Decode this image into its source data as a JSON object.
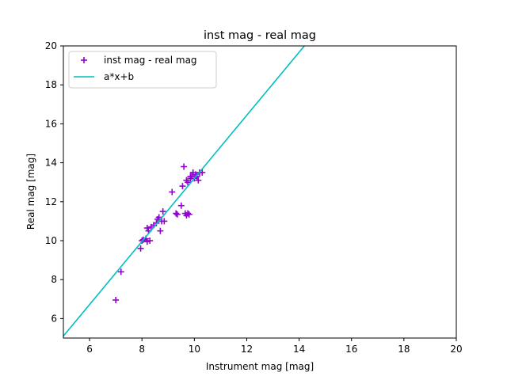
{
  "chart_data": {
    "type": "scatter",
    "title": "inst mag - real mag",
    "xlabel": "Instrument mag [mag]",
    "ylabel": "Real mag [mag]",
    "xlim": [
      5,
      20
    ],
    "ylim": [
      5,
      20
    ],
    "xticks": [
      "6",
      "8",
      "10",
      "12",
      "14",
      "16",
      "18",
      "20"
    ],
    "yticks": [
      "6",
      "8",
      "10",
      "12",
      "14",
      "16",
      "18",
      "20"
    ],
    "grid": false,
    "legend_position": "top-left",
    "series": [
      {
        "name": "inst mag - real mag",
        "kind": "scatter",
        "marker": "+",
        "color": "#9400d3",
        "x": [
          7.0,
          7.2,
          7.95,
          8.0,
          8.05,
          8.15,
          8.2,
          8.2,
          8.25,
          8.3,
          8.35,
          8.45,
          8.55,
          8.6,
          8.65,
          8.7,
          8.75,
          8.8,
          8.85,
          9.15,
          9.3,
          9.35,
          9.5,
          9.55,
          9.6,
          9.65,
          9.7,
          9.7,
          9.75,
          9.75,
          9.8,
          9.85,
          9.85,
          9.9,
          9.95,
          10.0,
          10.05,
          10.1,
          10.15,
          10.2,
          10.3
        ],
        "y": [
          6.95,
          8.4,
          9.6,
          10.0,
          10.05,
          10.1,
          10.65,
          9.95,
          10.5,
          10.0,
          10.7,
          10.8,
          10.9,
          11.1,
          11.2,
          10.5,
          11.0,
          11.5,
          11.0,
          12.5,
          11.4,
          11.35,
          11.8,
          12.8,
          13.8,
          11.4,
          11.3,
          13.1,
          13.0,
          11.4,
          11.35,
          13.3,
          13.2,
          13.3,
          13.5,
          13.2,
          13.4,
          13.3,
          13.1,
          13.5,
          13.5
        ]
      },
      {
        "name": "a*x+b",
        "kind": "line",
        "color": "#00bfbf",
        "x": [
          5.0,
          14.2
        ],
        "y": [
          5.1,
          20.0
        ]
      }
    ]
  }
}
